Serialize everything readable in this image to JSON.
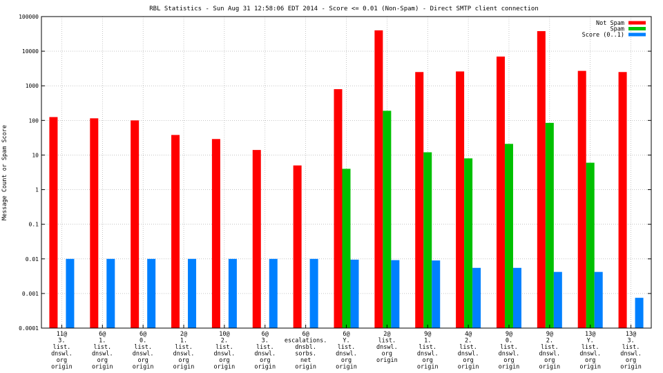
{
  "chart_data": {
    "type": "bar",
    "title": "RBL Statistics - Sun Aug 31 12:58:06 EDT 2014 - Score <= 0.01 (Non-Spam) - Direct SMTP client connection",
    "xlabel": "",
    "ylabel": "Message Count or Spam Score",
    "yscale": "log",
    "ylim": [
      0.0001,
      100000
    ],
    "yticks": [
      "0.0001",
      "0.001",
      "0.01",
      "0.1",
      "1",
      "10",
      "100",
      "1000",
      "10000",
      "100000"
    ],
    "grid": true,
    "legend_position": "top-right",
    "categories": [
      [
        "11@",
        "3.",
        "list.",
        "dnswl.",
        "org",
        "origin"
      ],
      [
        "6@",
        "1.",
        "list.",
        "dnswl.",
        "org",
        "origin"
      ],
      [
        "6@",
        "0.",
        "list.",
        "dnswl.",
        "org",
        "origin"
      ],
      [
        "2@",
        "1.",
        "list.",
        "dnswl.",
        "org",
        "origin"
      ],
      [
        "10@",
        "2.",
        "list.",
        "dnswl.",
        "org",
        "origin"
      ],
      [
        "6@",
        "3.",
        "list.",
        "dnswl.",
        "org",
        "origin"
      ],
      [
        "6@",
        "escalations.",
        "dnsbl.",
        "sorbs.",
        "net",
        "origin"
      ],
      [
        "6@",
        "Y.",
        "list.",
        "dnswl.",
        "org",
        "origin"
      ],
      [
        "2@",
        "list.",
        "dnswl.",
        "org",
        "origin"
      ],
      [
        "9@",
        "1.",
        "list.",
        "dnswl.",
        "org",
        "origin"
      ],
      [
        "4@",
        "2.",
        "list.",
        "dnswl.",
        "org",
        "origin"
      ],
      [
        "9@",
        "0.",
        "list.",
        "dnswl.",
        "org",
        "origin"
      ],
      [
        "9@",
        "2.",
        "list.",
        "dnswl.",
        "org",
        "origin"
      ],
      [
        "13@",
        "Y.",
        "list.",
        "dnswl.",
        "org",
        "origin"
      ],
      [
        "13@",
        "3.",
        "list.",
        "dnswl.",
        "org",
        "origin"
      ]
    ],
    "series": [
      {
        "name": "Not Spam",
        "color": "#ff0000",
        "values": [
          125,
          115,
          100,
          38,
          29,
          14,
          5,
          800,
          40000,
          2500,
          2600,
          7000,
          38000,
          2700,
          2500
        ]
      },
      {
        "name": "Spam",
        "color": "#00c000",
        "values": [
          null,
          null,
          null,
          null,
          null,
          null,
          null,
          4,
          190,
          12,
          8,
          21,
          85,
          6,
          null
        ]
      },
      {
        "name": "Score (0..1)",
        "color": "#0080ff",
        "values": [
          0.01,
          0.01,
          0.01,
          0.01,
          0.01,
          0.01,
          0.01,
          0.0095,
          0.0092,
          0.009,
          0.0055,
          0.0055,
          0.0042,
          0.0042,
          0.00075
        ]
      }
    ]
  }
}
